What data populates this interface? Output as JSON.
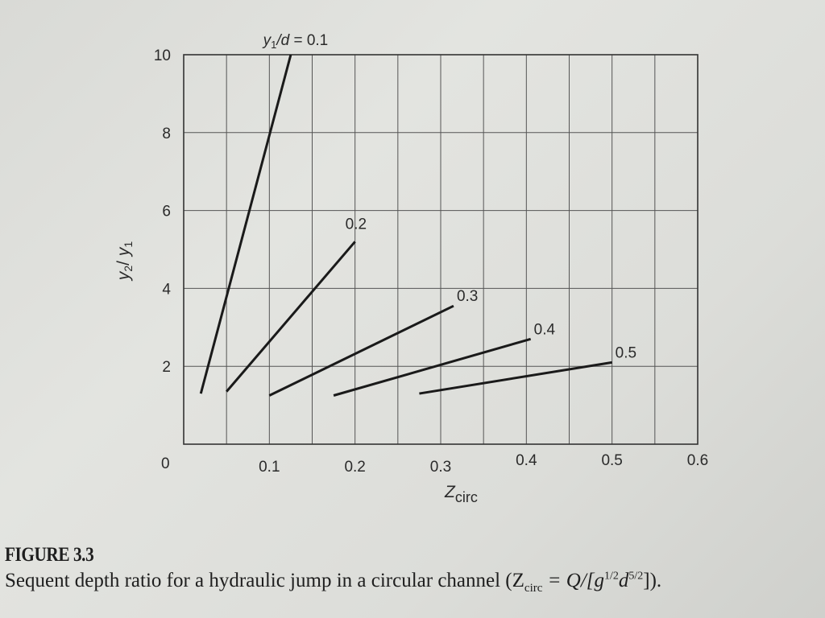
{
  "chart_data": {
    "type": "line",
    "title": "",
    "xlabel": "Zcirc",
    "xlabel_main": "Z",
    "xlabel_sub": "circ",
    "ylabel": "y2/y1",
    "xlim": [
      0,
      0.6
    ],
    "ylim": [
      0,
      10
    ],
    "grid": true,
    "x_minor_step": 0.05,
    "x_ticks": [
      0,
      0.1,
      0.2,
      0.3,
      0.4,
      0.5,
      0.6
    ],
    "x_tick_labels": [
      "0",
      "0.1",
      "0.2",
      "0.3",
      "0.4",
      "0.5",
      "0.6"
    ],
    "y_ticks": [
      2,
      4,
      6,
      8,
      10
    ],
    "y_tick_labels": [
      "2",
      "4",
      "6",
      "8",
      "10"
    ],
    "legend_position": "inline labels at line ends",
    "series": [
      {
        "name": "y1/d = 0.1",
        "label": "y₁/d = 0.1",
        "x": [
          0.02,
          0.125
        ],
        "y": [
          1.3,
          10.0
        ]
      },
      {
        "name": "0.2",
        "label": "0.2",
        "x": [
          0.05,
          0.2
        ],
        "y": [
          1.35,
          5.2
        ]
      },
      {
        "name": "0.3",
        "label": "0.3",
        "x": [
          0.1,
          0.315
        ],
        "y": [
          1.25,
          3.55
        ]
      },
      {
        "name": "0.4",
        "label": "0.4",
        "x": [
          0.175,
          0.405
        ],
        "y": [
          1.25,
          2.7
        ]
      },
      {
        "name": "0.5",
        "label": "0.5",
        "x": [
          0.275,
          0.5
        ],
        "y": [
          1.3,
          2.1
        ]
      }
    ]
  },
  "caption": {
    "figure_number": "FIGURE 3.3",
    "text_before": "Sequent depth ratio for a hydraulic jump in a circular channel (Z",
    "z_sub": "circ",
    "text_eq": " = Q/[g",
    "sup1": "1/2",
    "d": "d",
    "sup2": "5/2",
    "text_end": "])."
  }
}
